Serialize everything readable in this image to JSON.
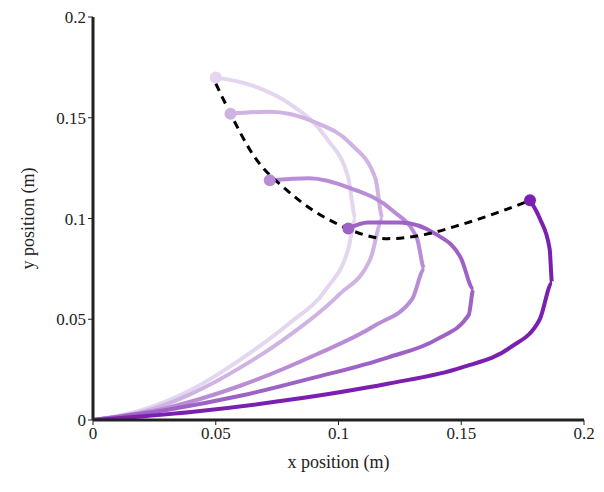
{
  "chart_data": {
    "type": "line",
    "x_label": "x position (m)",
    "y_label": "y position (m)",
    "xlim": [
      0,
      0.2
    ],
    "ylim": [
      0,
      0.2
    ],
    "xticks": [
      0,
      0.05,
      0.1,
      0.15,
      0.2
    ],
    "yticks": [
      0,
      0.05,
      0.1,
      0.15,
      0.2
    ],
    "grid": false,
    "series": [
      {
        "color": "#e4d6ef",
        "marker": "circle",
        "line_style": "solid",
        "x": [
          0,
          0.02,
          0.04,
          0.06,
          0.08,
          0.095,
          0.104,
          0.107,
          0.104,
          0.095,
          0.08,
          0.065,
          0.05
        ],
        "y": [
          0,
          0.005,
          0.015,
          0.03,
          0.048,
          0.065,
          0.085,
          0.1,
          0.12,
          0.14,
          0.157,
          0.166,
          0.17
        ]
      },
      {
        "color": "#cfb3e3",
        "marker": "circle",
        "line_style": "solid",
        "x": [
          0,
          0.02,
          0.04,
          0.06,
          0.08,
          0.1,
          0.113,
          0.118,
          0.115,
          0.105,
          0.09,
          0.072,
          0.056
        ],
        "y": [
          0,
          0.004,
          0.013,
          0.026,
          0.042,
          0.062,
          0.08,
          0.1,
          0.12,
          0.137,
          0.148,
          0.153,
          0.152
        ]
      },
      {
        "color": "#b98dd6",
        "marker": "circle",
        "line_style": "solid",
        "x": [
          0,
          0.03,
          0.06,
          0.09,
          0.115,
          0.13,
          0.135,
          0.132,
          0.122,
          0.105,
          0.088,
          0.072
        ],
        "y": [
          0,
          0.006,
          0.017,
          0.032,
          0.047,
          0.06,
          0.075,
          0.09,
          0.104,
          0.115,
          0.12,
          0.119
        ]
      },
      {
        "color": "#9e62c6",
        "marker": "circle",
        "line_style": "solid",
        "x": [
          0,
          0.03,
          0.06,
          0.09,
          0.12,
          0.14,
          0.153,
          0.155,
          0.15,
          0.14,
          0.125,
          0.112,
          0.104
        ],
        "y": [
          0,
          0.005,
          0.012,
          0.021,
          0.031,
          0.04,
          0.052,
          0.065,
          0.08,
          0.092,
          0.098,
          0.098,
          0.095
        ]
      },
      {
        "color": "#7a1fb0",
        "marker": "circle",
        "line_style": "solid",
        "x": [
          0,
          0.04,
          0.08,
          0.12,
          0.15,
          0.17,
          0.182,
          0.187,
          0.186,
          0.182,
          0.178
        ],
        "y": [
          0,
          0.004,
          0.01,
          0.018,
          0.026,
          0.036,
          0.05,
          0.068,
          0.085,
          0.1,
          0.109
        ]
      },
      {
        "color": "#000000",
        "marker": "none",
        "line_style": "dashed",
        "x": [
          0.05,
          0.056,
          0.065,
          0.08,
          0.1,
          0.12,
          0.135,
          0.15,
          0.165,
          0.178
        ],
        "y": [
          0.167,
          0.152,
          0.132,
          0.113,
          0.097,
          0.09,
          0.092,
          0.097,
          0.103,
          0.109
        ]
      }
    ]
  }
}
